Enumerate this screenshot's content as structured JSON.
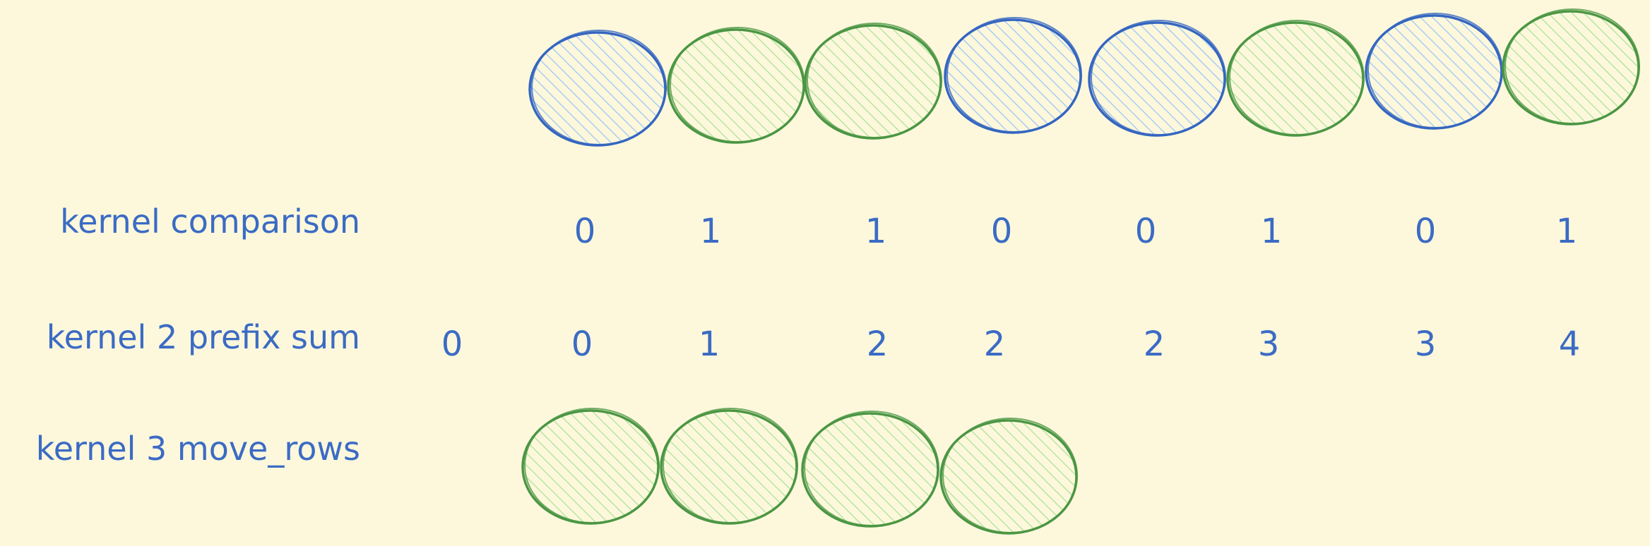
{
  "colors": {
    "background": "#fdf8dc",
    "text": "#3b6bc4",
    "blue_stroke": "#3566c0",
    "blue_fill": "#a9cdf3",
    "green_stroke": "#4b9644",
    "green_fill": "#b6e6a2"
  },
  "input_row": {
    "circles": [
      "blue",
      "green",
      "green",
      "blue",
      "blue",
      "green",
      "blue",
      "green"
    ]
  },
  "comparison_row": {
    "label": "kernel comparison",
    "values": [
      "0",
      "1",
      "1",
      "0",
      "0",
      "1",
      "0",
      "1"
    ]
  },
  "prefix_row": {
    "label": "kernel 2 prefix sum",
    "values": [
      "0",
      "0",
      "1",
      "2",
      "2",
      "2",
      "3",
      "3",
      "4"
    ]
  },
  "move_row": {
    "label": "kernel 3 move_rows",
    "circles": [
      "green",
      "green",
      "green",
      "green"
    ]
  }
}
